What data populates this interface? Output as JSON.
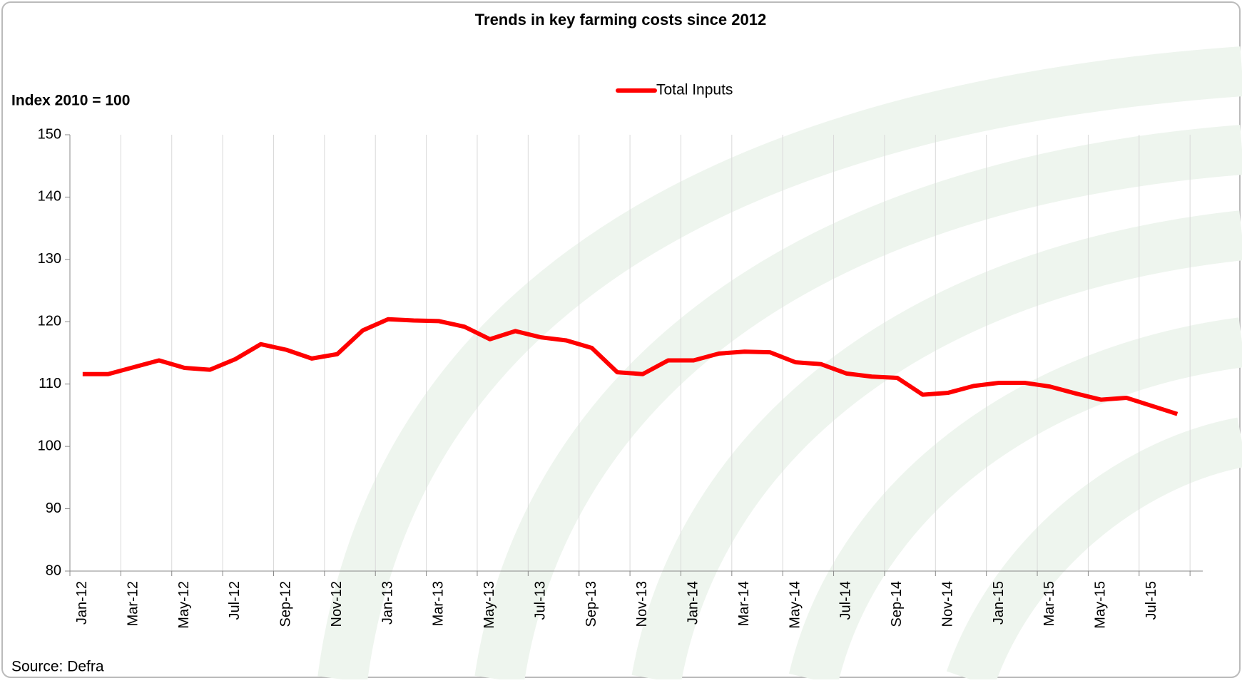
{
  "chart_data": {
    "type": "line",
    "title": "Trends in key farming costs since 2012",
    "y_label": "Index 2010 = 100",
    "source": "Source: Defra",
    "categories": [
      "Jan-12",
      null,
      "Mar-12",
      null,
      "May-12",
      null,
      "Jul-12",
      null,
      "Sep-12",
      null,
      "Nov-12",
      null,
      "Jan-13",
      null,
      "Mar-13",
      null,
      "May-13",
      null,
      "Jul-13",
      null,
      "Sep-13",
      null,
      "Nov-13",
      null,
      "Jan-14",
      null,
      "Mar-14",
      null,
      "May-14",
      null,
      "Jul-14",
      null,
      "Sep-14",
      null,
      "Nov-14",
      null,
      "Jan-15",
      null,
      "Mar-15",
      null,
      "May-15",
      null,
      "Jul-15",
      null
    ],
    "series": [
      {
        "name": "Total Inputs",
        "color": "#ff0000",
        "values": [
          111.6,
          111.6,
          112.7,
          113.8,
          112.6,
          112.3,
          114.0,
          116.4,
          115.5,
          114.1,
          114.8,
          118.6,
          120.4,
          120.2,
          120.1,
          119.2,
          117.2,
          118.5,
          117.5,
          117.0,
          115.8,
          111.9,
          111.6,
          113.8,
          113.8,
          114.9,
          115.2,
          115.1,
          113.5,
          113.2,
          111.7,
          111.2,
          111.0,
          108.3,
          108.6,
          109.7,
          110.2,
          110.2,
          109.6,
          108.5,
          107.5,
          107.8,
          106.5,
          105.2
        ]
      }
    ],
    "ylim": [
      80,
      150
    ],
    "yticks": [
      80,
      90,
      100,
      110,
      120,
      130,
      140,
      150
    ],
    "legend": "top"
  }
}
